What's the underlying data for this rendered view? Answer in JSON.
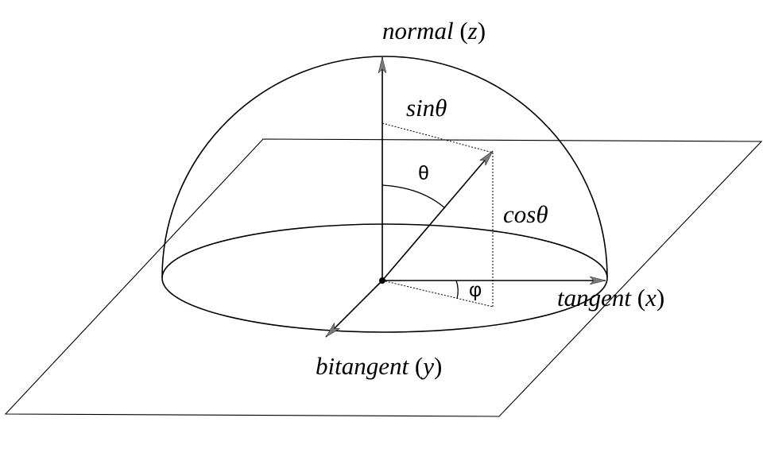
{
  "labels": {
    "normal": {
      "word": "normal",
      "axis": "z"
    },
    "tangent": {
      "word": "tangent",
      "axis": "x"
    },
    "bitangent": {
      "word": "bitangent",
      "axis": "y"
    },
    "sin_theta": "sinθ",
    "cos_theta": "cosθ",
    "theta": "θ",
    "phi": "φ"
  },
  "colors": {
    "line": "#000000",
    "arrowhead": "#7a7a7a",
    "background": "#ffffff"
  }
}
